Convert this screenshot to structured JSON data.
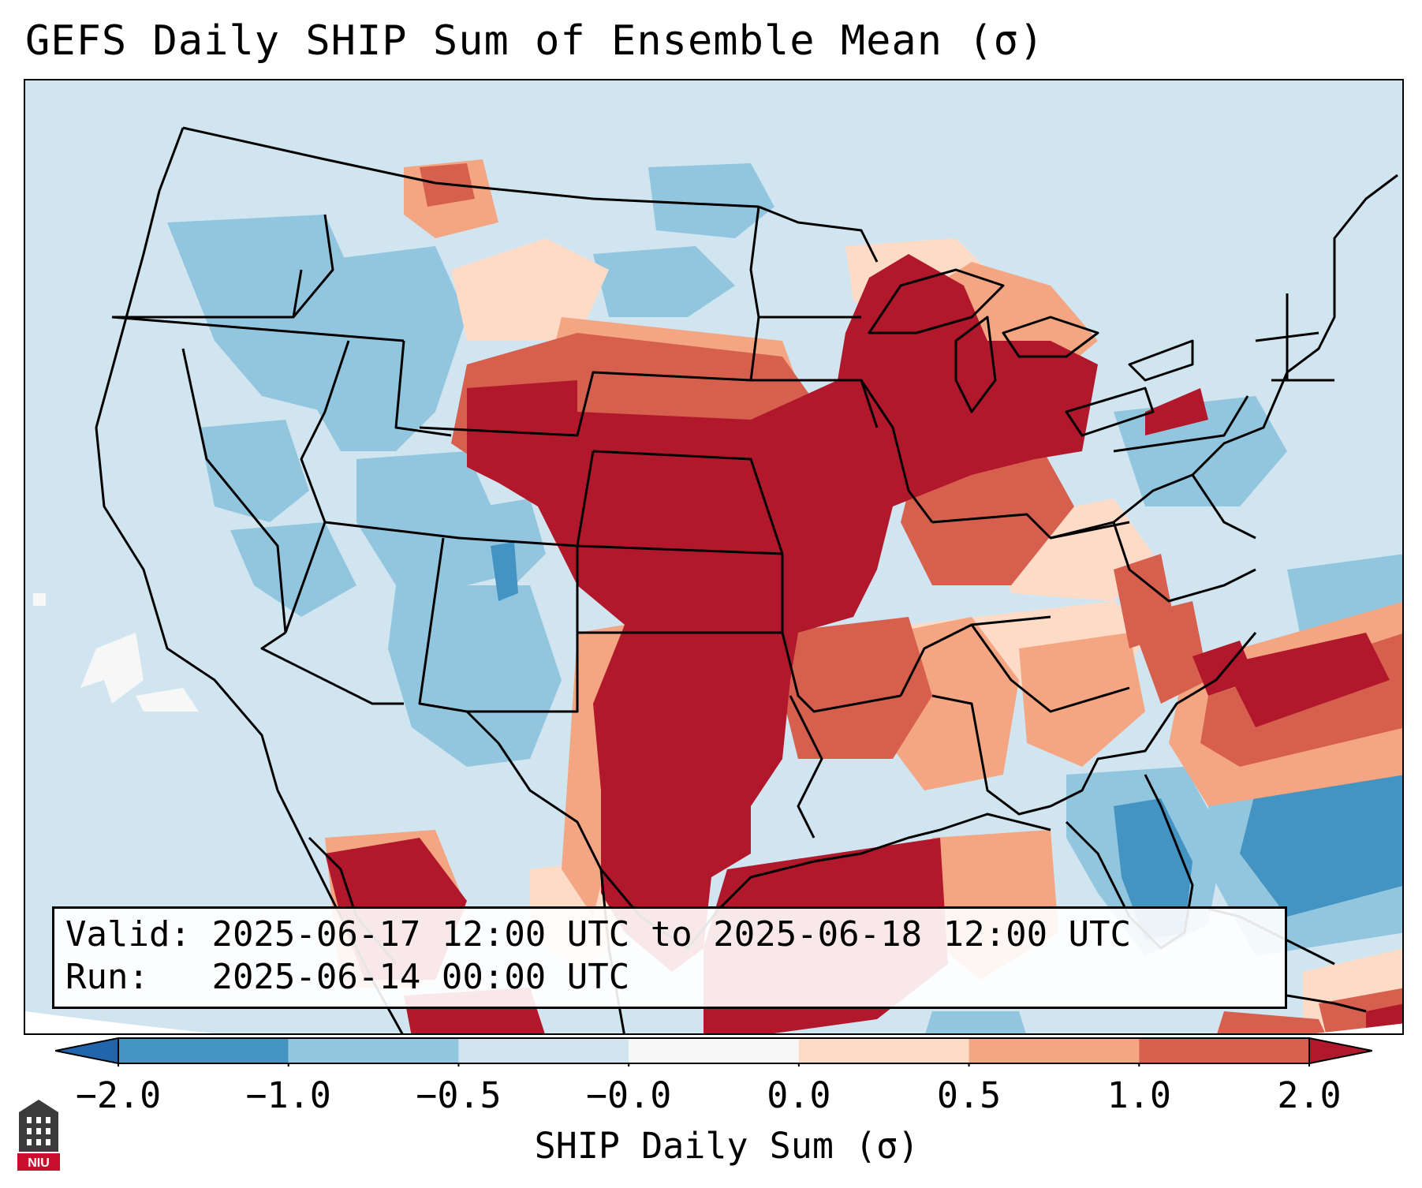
{
  "title": "GEFS Daily SHIP Sum of Ensemble Mean (σ)",
  "info": {
    "valid_label": "Valid:",
    "valid_value": "2025-06-17 12:00 UTC to 2025-06-18 12:00 UTC",
    "run_label": "Run:",
    "run_value": "2025-06-14 00:00 UTC"
  },
  "colorbar": {
    "label": "SHIP Daily Sum (σ)",
    "ticks": [
      "−2.0",
      "−1.0",
      "−0.5",
      "−0.0",
      "0.0",
      "0.5",
      "1.0",
      "2.0"
    ],
    "levels": [
      -2.0,
      -1.0,
      -0.5,
      -0.0,
      0.0,
      0.5,
      1.0,
      2.0
    ],
    "colors": [
      "#4393c3",
      "#92c5de",
      "#d1e5f0",
      "#f7f7f7",
      "#fddbc7",
      "#f4a582",
      "#d6604d"
    ],
    "under_color": "#2166ac",
    "over_color": "#b2182b",
    "extend": "both"
  },
  "map": {
    "region": "Contiguous United States",
    "dominant_signal": "strong positive (>2.0) over central/southern Plains, Upper Midwest and Great Lakes"
  },
  "logo": {
    "text": "NIU"
  }
}
